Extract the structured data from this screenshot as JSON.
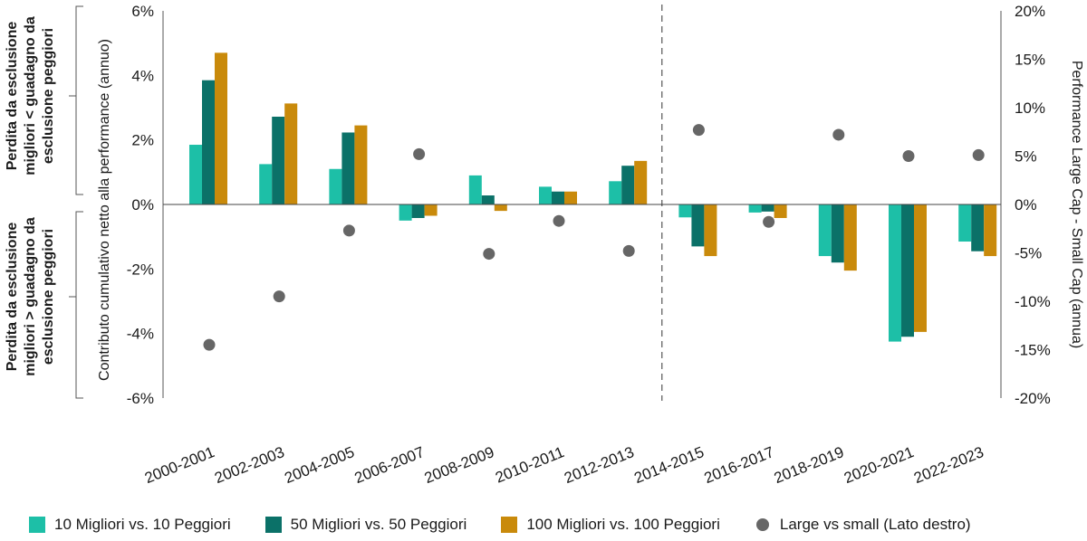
{
  "chart_data": {
    "type": "bar",
    "categories": [
      "2000-2001",
      "2002-2003",
      "2004-2005",
      "2006-2007",
      "2008-2009",
      "2010-2011",
      "2012-2013",
      "2014-2015",
      "2016-2017",
      "2018-2019",
      "2020-2021",
      "2022-2023"
    ],
    "series": [
      {
        "name": "10 Migliori vs. 10 Peggiori",
        "color": "#1dbfa7",
        "axis": "left",
        "values": [
          1.85,
          1.25,
          1.1,
          -0.5,
          0.9,
          0.55,
          0.72,
          -0.4,
          -0.25,
          -1.6,
          -4.25,
          -1.15
        ]
      },
      {
        "name": "50 Migliori vs. 50 Peggiori",
        "color": "#0b7168",
        "axis": "left",
        "values": [
          3.85,
          2.72,
          2.23,
          -0.42,
          0.28,
          0.4,
          1.2,
          -1.3,
          -0.22,
          -1.8,
          -4.1,
          -1.45
        ]
      },
      {
        "name": "100 Migliori vs. 100 Peggiori",
        "color": "#c98a0b",
        "axis": "left",
        "values": [
          4.7,
          3.13,
          2.45,
          -0.35,
          -0.2,
          0.4,
          1.35,
          -1.6,
          -0.42,
          -2.05,
          -3.95,
          -1.6
        ]
      },
      {
        "name": "Large vs small (Lato destro)",
        "color": "#666666",
        "axis": "right",
        "marker": "dot",
        "values": [
          -14.5,
          -9.5,
          -2.7,
          5.2,
          -5.1,
          -1.7,
          -4.8,
          7.7,
          -1.8,
          7.2,
          5.0,
          5.1
        ]
      }
    ],
    "y_left": {
      "ylim": [
        -6,
        6
      ],
      "ticks": [
        -6,
        -4,
        -2,
        0,
        2,
        4,
        6
      ],
      "tick_labels": [
        "-6%",
        "-4%",
        "-2%",
        "0%",
        "2%",
        "4%",
        "6%"
      ],
      "label": "Contributo cumulativo netto alla performance (annuo)"
    },
    "y_right": {
      "ylim": [
        -20,
        20
      ],
      "ticks": [
        -20,
        -15,
        -10,
        -5,
        0,
        5,
        10,
        15,
        20
      ],
      "tick_labels": [
        "-20%",
        "-15%",
        "-10%",
        "-5%",
        "0%",
        "5%",
        "10%",
        "15%",
        "20%"
      ],
      "label": "Performance Large Cap - Small Cap (annua)"
    },
    "divider_after_category": "2012-2013",
    "bracket_labels": {
      "upper": [
        "Perdita da esclusione",
        "migliori < guadagno da",
        "esclusione peggiori"
      ],
      "lower": [
        "Perdita da esclusione",
        "migliori > guadagno da",
        "esclusione peggiori"
      ]
    }
  }
}
